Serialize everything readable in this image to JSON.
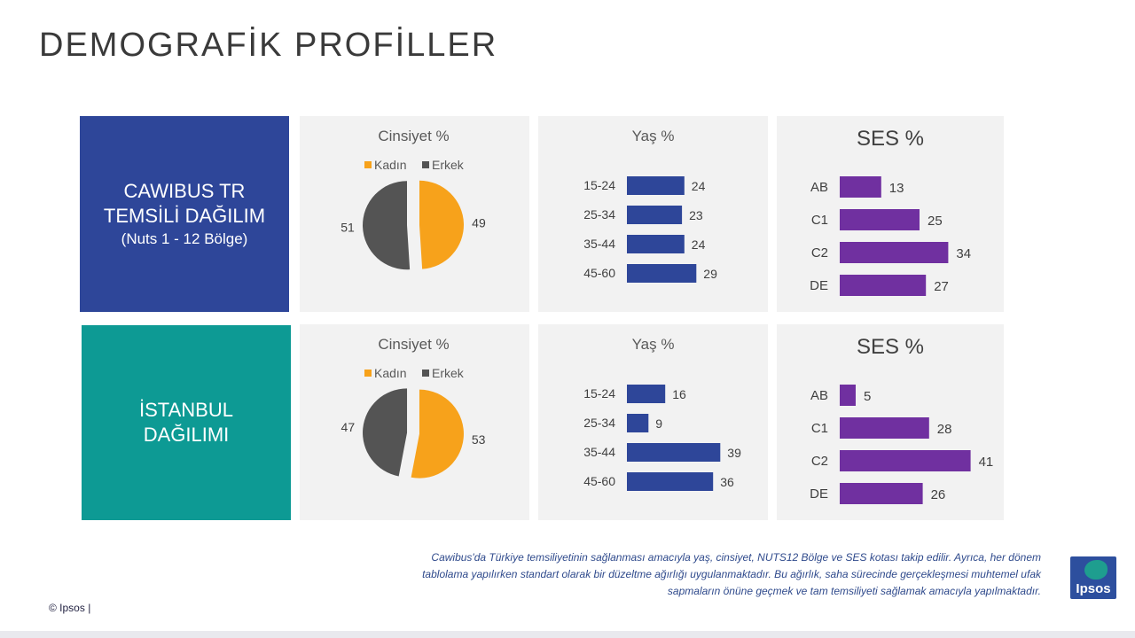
{
  "page_title": "DEMOGRAFİK PROFİLLER",
  "rows": [
    {
      "label_lines": [
        "CAWIBUS TR",
        "TEMSİLİ DAĞILIM"
      ],
      "label_sub": "(Nuts 1 - 12 Bölge)",
      "label_color": "#2e4699"
    },
    {
      "label_lines": [
        "İSTANBUL",
        "DAĞILIMI"
      ],
      "label_sub": "",
      "label_color": "#0d9a94"
    }
  ],
  "colors": {
    "kadin": "#f7a21b",
    "erkek": "#545454",
    "yas_bar": "#2e4699",
    "ses_bar": "#7030a0"
  },
  "chart_data": [
    {
      "type": "pie",
      "title": "Cinsiyet %",
      "legend": [
        "Kadın",
        "Erkek"
      ],
      "legend_position": "top",
      "slices": [
        {
          "label": "Kadın",
          "value": 49
        },
        {
          "label": "Erkek",
          "value": 51
        }
      ]
    },
    {
      "type": "bar",
      "orientation": "horizontal",
      "title": "Yaş %",
      "categories": [
        "15-24",
        "25-34",
        "35-44",
        "45-60"
      ],
      "values": [
        24,
        23,
        24,
        29
      ]
    },
    {
      "type": "bar",
      "orientation": "horizontal",
      "title": "SES %",
      "categories": [
        "AB",
        "C1",
        "C2",
        "DE"
      ],
      "values": [
        13,
        25,
        34,
        27
      ]
    },
    {
      "type": "pie",
      "title": "Cinsiyet %",
      "legend": [
        "Kadın",
        "Erkek"
      ],
      "legend_position": "top",
      "slices": [
        {
          "label": "Kadın",
          "value": 53
        },
        {
          "label": "Erkek",
          "value": 47
        }
      ]
    },
    {
      "type": "bar",
      "orientation": "horizontal",
      "title": "Yaş %",
      "categories": [
        "15-24",
        "25-34",
        "35-44",
        "45-60"
      ],
      "values": [
        16,
        9,
        39,
        36
      ]
    },
    {
      "type": "bar",
      "orientation": "horizontal",
      "title": "SES %",
      "categories": [
        "AB",
        "C1",
        "C2",
        "DE"
      ],
      "values": [
        5,
        28,
        41,
        26
      ]
    }
  ],
  "footnote": "Cawibus'da Türkiye temsiliyetinin sağlanması amacıyla yaş, cinsiyet, NUTS12 Bölge ve SES kotası takip edilir. Ayrıca, her dönem tablolama yapılırken standart olarak bir düzeltme ağırlığı uygulanmaktadır. Bu ağırlık, saha sürecinde gerçekleşmesi muhtemel ufak sapmaların önüne geçmek ve tam temsiliyeti sağlamak amacıyla yapılmaktadır.",
  "copyright": "© Ipsos |",
  "logo_text": "Ipsos"
}
